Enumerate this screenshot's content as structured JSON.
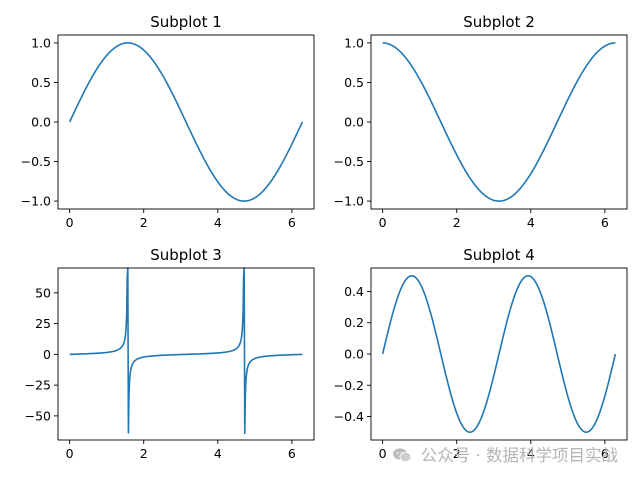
{
  "chart_data": [
    {
      "type": "line",
      "title": "Subplot 1",
      "function": "sin(x)",
      "x_range": [
        0,
        6.283
      ],
      "xlim": [
        -0.314,
        6.597
      ],
      "ylim": [
        -1.1,
        1.1
      ],
      "xticks": [
        0,
        2,
        4,
        6
      ],
      "yticks": [
        1.0,
        0.5,
        0.0,
        -0.5,
        -1.0
      ],
      "yticklabels": [
        "1.0",
        "0.5",
        "0.0",
        "−0.5",
        "−1.0"
      ],
      "color": "#1f77b4",
      "points": {
        "x": [
          0,
          0.785,
          1.571,
          2.356,
          3.142,
          3.927,
          4.712,
          5.498,
          6.283
        ],
        "y": [
          0,
          0.707,
          1.0,
          0.707,
          0,
          -0.707,
          -1.0,
          -0.707,
          0
        ]
      }
    },
    {
      "type": "line",
      "title": "Subplot 2",
      "function": "cos(x)",
      "x_range": [
        0,
        6.283
      ],
      "xlim": [
        -0.314,
        6.597
      ],
      "ylim": [
        -1.1,
        1.1
      ],
      "xticks": [
        0,
        2,
        4,
        6
      ],
      "yticks": [
        1.0,
        0.5,
        0.0,
        -0.5,
        -1.0
      ],
      "yticklabels": [
        "1.0",
        "0.5",
        "0.0",
        "−0.5",
        "−1.0"
      ],
      "color": "#1f77b4",
      "points": {
        "x": [
          0,
          0.785,
          1.571,
          2.356,
          3.142,
          3.927,
          4.712,
          5.498,
          6.283
        ],
        "y": [
          1.0,
          0.707,
          0,
          -0.707,
          -1.0,
          -0.707,
          0,
          0.707,
          1.0
        ]
      }
    },
    {
      "type": "line",
      "title": "Subplot 3",
      "function": "tan(x)",
      "x_range": [
        0,
        6.283
      ],
      "xlim": [
        -0.314,
        6.597
      ],
      "ylim": [
        -69.6,
        70.2
      ],
      "xticks": [
        0,
        2,
        4,
        6
      ],
      "yticks": [
        50,
        25,
        0,
        -25,
        -50
      ],
      "yticklabels": [
        "50",
        "25",
        "0",
        "−25",
        "−50"
      ],
      "color": "#1f77b4",
      "points": {
        "x": [
          0,
          1.0,
          1.5,
          1.555,
          1.587,
          1.65,
          2.5,
          3.142,
          4.5,
          4.697,
          4.729,
          4.79,
          6.283
        ],
        "y": [
          0,
          1.56,
          14.1,
          21.3,
          -63.5,
          -12.6,
          -0.75,
          0,
          4.64,
          63.5,
          -21.3,
          -12.6,
          0
        ]
      }
    },
    {
      "type": "line",
      "title": "Subplot 4",
      "function": "sin(x)*cos(x)",
      "x_range": [
        0,
        6.283
      ],
      "xlim": [
        -0.314,
        6.597
      ],
      "ylim": [
        -0.55,
        0.55
      ],
      "xticks": [
        0,
        2,
        4,
        6
      ],
      "yticks": [
        0.4,
        0.2,
        0.0,
        -0.2,
        -0.4
      ],
      "yticklabels": [
        "0.4",
        "0.2",
        "0.0",
        "−0.2",
        "−0.4"
      ],
      "color": "#1f77b4",
      "points": {
        "x": [
          0,
          0.785,
          1.571,
          2.356,
          3.142,
          3.927,
          4.712,
          5.498,
          6.283
        ],
        "y": [
          0,
          0.5,
          0,
          -0.5,
          0,
          0.5,
          0,
          -0.5,
          0
        ]
      }
    }
  ],
  "watermark": {
    "text": "公众号 · 数据科学项目实战",
    "icon": "wechat-icon",
    "color": "#b5b5b5"
  }
}
